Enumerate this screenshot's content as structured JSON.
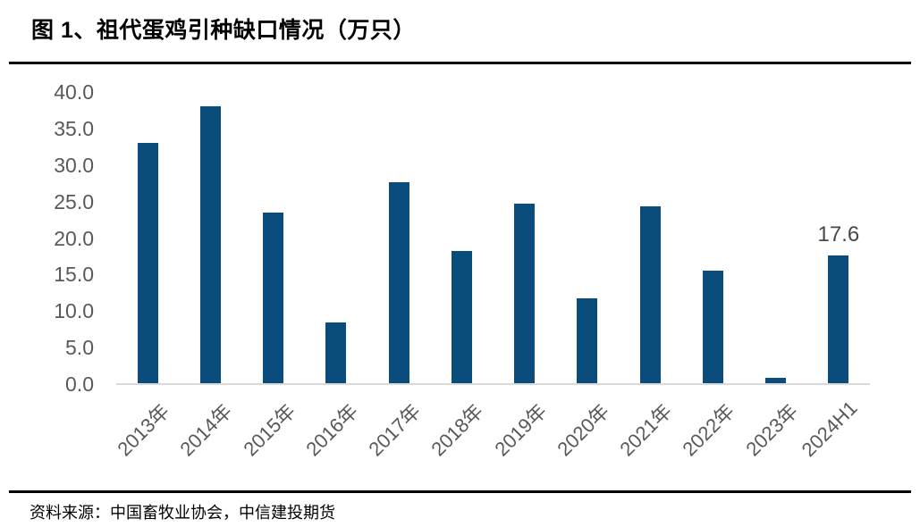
{
  "page": {
    "title": "图 1、祖代蛋鸡引种缺口情况（万只）",
    "source": "资料来源：中国畜牧业协会，中信建投期货"
  },
  "chart_data": {
    "type": "bar",
    "title": "图 1、祖代蛋鸡引种缺口情况（万只）",
    "unit": "万只",
    "categories": [
      "2013年",
      "2014年",
      "2015年",
      "2016年",
      "2017年",
      "2018年",
      "2019年",
      "2020年",
      "2021年",
      "2022年",
      "2023年",
      "2024H1"
    ],
    "values": [
      33.0,
      38.0,
      23.5,
      8.4,
      27.6,
      18.2,
      24.7,
      11.7,
      24.3,
      15.6,
      0.9,
      17.6
    ],
    "ylim": [
      0,
      40
    ],
    "ytick_step": 5,
    "ytick_labels": [
      "0.0",
      "5.0",
      "10.0",
      "15.0",
      "20.0",
      "25.0",
      "30.0",
      "35.0",
      "40.0"
    ],
    "data_labels": [
      {
        "index": 11,
        "text": "17.6"
      }
    ],
    "grid": false,
    "legend": false,
    "colors": {
      "bar": "#0a4d7c",
      "axis_line": "#d9d9d9",
      "tick_label": "#595959",
      "data_label": "#474747",
      "title": "#000000"
    }
  }
}
